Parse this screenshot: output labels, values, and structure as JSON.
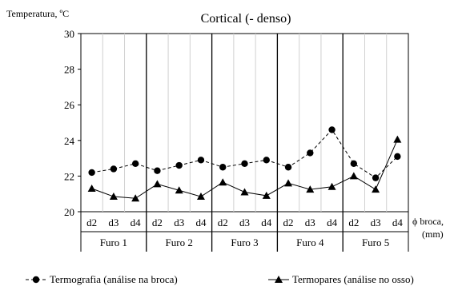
{
  "chart_data": {
    "type": "line",
    "title": "Cortical (- denso)",
    "ylabel": "Temperatura, ºC",
    "xlabel": [
      "ϕ broca,",
      "(mm)"
    ],
    "ylim": [
      20,
      30
    ],
    "yticks": [
      20,
      22,
      24,
      26,
      28,
      30
    ],
    "categories": [
      "d2",
      "d3",
      "d4",
      "d2",
      "d3",
      "d4",
      "d2",
      "d3",
      "d4",
      "d2",
      "d3",
      "d4",
      "d2",
      "d3",
      "d4"
    ],
    "groups": [
      "Furo 1",
      "Furo 2",
      "Furo 3",
      "Furo 4",
      "Furo 5"
    ],
    "grid": "vertical",
    "legend_position": "bottom",
    "series": [
      {
        "name": "Termografia (análise na broca)",
        "marker": "circle",
        "values": [
          22.2,
          22.4,
          22.7,
          22.3,
          22.6,
          22.9,
          22.5,
          22.7,
          22.9,
          22.5,
          23.3,
          24.6,
          22.7,
          21.9,
          23.1
        ]
      },
      {
        "name": "Termopares (análise no osso)",
        "marker": "triangle",
        "values": [
          21.3,
          20.85,
          20.75,
          21.55,
          21.2,
          20.85,
          21.65,
          21.1,
          20.9,
          21.6,
          21.25,
          21.4,
          22.0,
          21.25,
          24.05
        ]
      }
    ]
  }
}
